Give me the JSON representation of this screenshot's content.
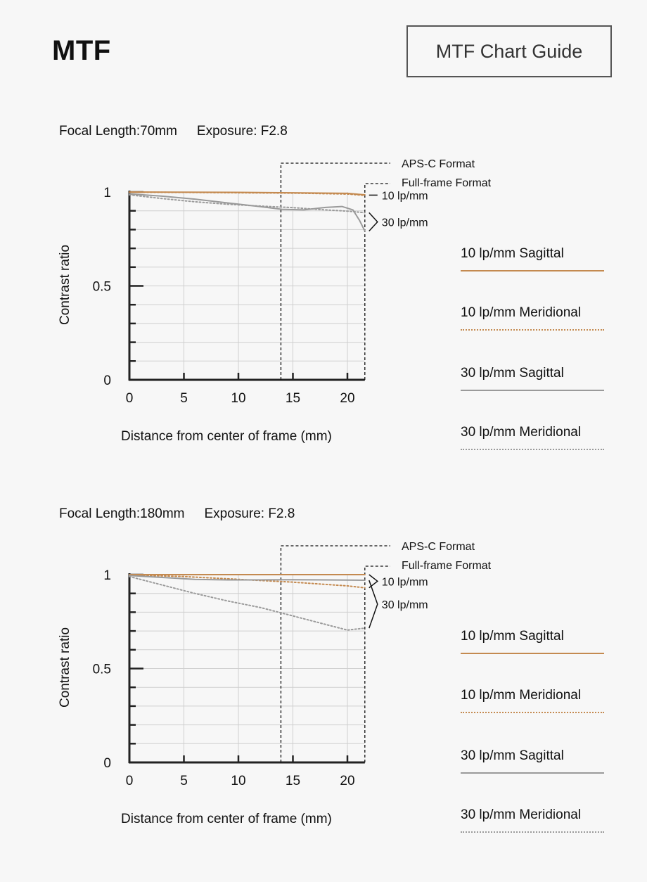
{
  "header": {
    "title": "MTF",
    "guide_button_label": "MTF Chart Guide"
  },
  "colors": {
    "sagittal_10": "#c48a50",
    "meridional_10": "#c48a50",
    "sagittal_30": "#9a9a9a",
    "meridional_30": "#9a9a9a",
    "grid": "#cfcfcf",
    "axis": "#222222"
  },
  "legend": [
    {
      "label": "10 lp/mm Sagittal",
      "style": "solid",
      "color": "#c48a50"
    },
    {
      "label": "10 lp/mm Meridional",
      "style": "dotted",
      "color": "#c48a50"
    },
    {
      "label": "30 lp/mm Sagittal",
      "style": "solid",
      "color": "#9a9a9a"
    },
    {
      "label": "30 lp/mm Meridional",
      "style": "dotted",
      "color": "#9a9a9a"
    }
  ],
  "charts": [
    {
      "focal_length": "Focal Length:70mm",
      "exposure": "Exposure: F2.8"
    },
    {
      "focal_length": "Focal Length:180mm",
      "exposure": "Exposure: F2.8"
    }
  ],
  "chart_data": [
    {
      "type": "line",
      "title": "Focal Length:70mm    Exposure: F2.8",
      "xlabel": "Distance from center of frame (mm)",
      "ylabel": "Contrast ratio",
      "xlim": [
        0,
        21.6
      ],
      "ylim": [
        0,
        1
      ],
      "xticks": [
        "0",
        "5",
        "10",
        "15",
        "20"
      ],
      "yticks": [
        "0",
        "0.5",
        "1"
      ],
      "grid": true,
      "markers": [
        {
          "label": "APS-C Format",
          "x": 13.9
        },
        {
          "label": "Full-frame Format",
          "x": 21.6
        }
      ],
      "group_labels": [
        "10 lp/mm",
        "30 lp/mm"
      ],
      "series": [
        {
          "name": "10 lp/mm Sagittal",
          "style": "solid",
          "color": "#c48a50",
          "x": [
            0,
            5,
            10,
            15,
            20,
            21.6
          ],
          "y": [
            1.0,
            0.999,
            0.998,
            0.996,
            0.993,
            0.985
          ]
        },
        {
          "name": "10 lp/mm Meridional",
          "style": "dotted",
          "color": "#c48a50",
          "x": [
            0,
            5,
            10,
            15,
            20,
            21.6
          ],
          "y": [
            0.999,
            0.998,
            0.996,
            0.994,
            0.989,
            0.982
          ]
        },
        {
          "name": "30 lp/mm Sagittal",
          "style": "solid",
          "color": "#9a9a9a",
          "x": [
            0,
            3,
            6,
            9,
            12,
            14,
            16,
            18,
            19.5,
            20.5,
            21.1,
            21.6
          ],
          "y": [
            0.99,
            0.978,
            0.962,
            0.942,
            0.922,
            0.908,
            0.905,
            0.918,
            0.923,
            0.905,
            0.85,
            0.792
          ]
        },
        {
          "name": "30 lp/mm Meridional",
          "style": "dotted",
          "color": "#9a9a9a",
          "x": [
            0,
            3,
            6,
            9,
            12,
            15,
            18,
            20,
            21.6
          ],
          "y": [
            0.985,
            0.965,
            0.948,
            0.935,
            0.925,
            0.917,
            0.905,
            0.898,
            0.89
          ]
        }
      ]
    },
    {
      "type": "line",
      "title": "Focal Length:180mm    Exposure: F2.8",
      "xlabel": "Distance from center of frame (mm)",
      "ylabel": "Contrast ratio",
      "xlim": [
        0,
        21.6
      ],
      "ylim": [
        0,
        1
      ],
      "xticks": [
        "0",
        "5",
        "10",
        "15",
        "20"
      ],
      "yticks": [
        "0",
        "0.5",
        "1"
      ],
      "grid": true,
      "markers": [
        {
          "label": "APS-C Format",
          "x": 13.9
        },
        {
          "label": "Full-frame Format",
          "x": 21.6
        }
      ],
      "group_labels": [
        "10 lp/mm",
        "30 lp/mm"
      ],
      "series": [
        {
          "name": "10 lp/mm Sagittal",
          "style": "solid",
          "color": "#c48a50",
          "x": [
            0,
            5,
            10,
            15,
            20,
            21.6
          ],
          "y": [
            1.0,
            1.0,
            1.0,
            1.0,
            1.0,
            1.0
          ]
        },
        {
          "name": "10 lp/mm Meridional",
          "style": "dotted",
          "color": "#c48a50",
          "x": [
            0,
            5,
            10,
            15,
            20,
            21.6
          ],
          "y": [
            0.998,
            0.99,
            0.975,
            0.96,
            0.94,
            0.93
          ]
        },
        {
          "name": "30 lp/mm Sagittal",
          "style": "solid",
          "color": "#9a9a9a",
          "x": [
            0,
            3,
            6,
            9,
            12,
            15,
            18,
            21.6
          ],
          "y": [
            0.995,
            0.985,
            0.975,
            0.972,
            0.972,
            0.973,
            0.972,
            0.97
          ]
        },
        {
          "name": "30 lp/mm Meridional",
          "style": "dotted",
          "color": "#9a9a9a",
          "x": [
            0,
            3,
            6,
            9,
            12,
            15,
            18,
            20,
            21.6
          ],
          "y": [
            0.99,
            0.945,
            0.9,
            0.86,
            0.825,
            0.78,
            0.735,
            0.705,
            0.715
          ]
        }
      ]
    }
  ]
}
